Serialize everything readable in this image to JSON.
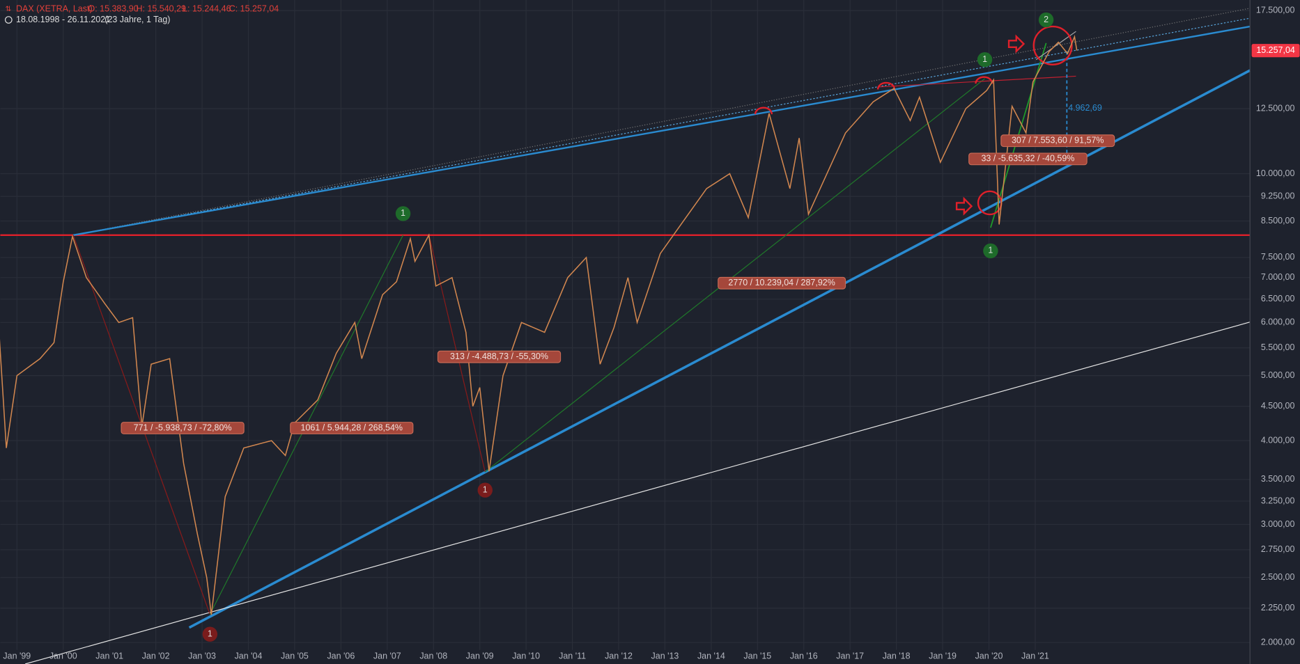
{
  "chart_data": {
    "type": "line",
    "header": {
      "symbol": "DAX (XETRA, Last)",
      "open": "O: 15.383,90",
      "high": "H: 15.540,29",
      "low": "L: 15.244,46",
      "close": "C: 15.257,04",
      "range": "18.08.1998 - 26.11.2021",
      "span": "(23 Jahre, 1 Tag)"
    },
    "x": [
      1998.62,
      1998.77,
      1999.0,
      1999.5,
      1999.8,
      2000.0,
      2000.2,
      2000.5,
      2000.9,
      2001.2,
      2001.5,
      2001.7,
      2001.9,
      2002.3,
      2002.6,
      2002.9,
      2003.1,
      2003.2,
      2003.5,
      2003.9,
      2004.5,
      2004.8,
      2005.0,
      2005.5,
      2005.9,
      2006.3,
      2006.45,
      2006.9,
      2007.2,
      2007.5,
      2007.6,
      2007.9,
      2008.05,
      2008.4,
      2008.7,
      2008.85,
      2009.0,
      2009.2,
      2009.5,
      2009.9,
      2010.4,
      2010.9,
      2011.3,
      2011.6,
      2011.9,
      2012.2,
      2012.4,
      2012.9,
      2013.4,
      2013.9,
      2014.4,
      2014.8,
      2015.25,
      2015.7,
      2015.9,
      2016.1,
      2016.5,
      2016.9,
      2017.5,
      2017.95,
      2018.3,
      2018.5,
      2018.95,
      2019.5,
      2019.95,
      2020.1,
      2020.22,
      2020.5,
      2020.8,
      2020.95,
      2021.3,
      2021.5,
      2021.7,
      2021.85,
      2021.9
    ],
    "series": [
      {
        "color": "#d2874f",
        "values": [
          5700,
          3900,
          5000,
          5300,
          5600,
          6900,
          8060,
          7000,
          6400,
          6000,
          6100,
          4200,
          5200,
          5300,
          3700,
          2900,
          2500,
          2200,
          3300,
          3900,
          4000,
          3800,
          4250,
          4600,
          5400,
          6000,
          5300,
          6600,
          6900,
          8000,
          7400,
          8100,
          6800,
          7000,
          5800,
          4500,
          4800,
          3600,
          5000,
          6000,
          5800,
          7000,
          7500,
          5200,
          5900,
          7000,
          6000,
          7600,
          8500,
          9500,
          10000,
          8600,
          12300,
          9500,
          11300,
          8700,
          10000,
          11500,
          12800,
          13400,
          12000,
          13000,
          10400,
          12500,
          13300,
          13800,
          8400,
          12600,
          11500,
          13700,
          15200,
          15700,
          15100,
          16000,
          15257
        ]
      }
    ],
    "last_value": {
      "value": 15257.04,
      "label": "15.257,04"
    },
    "xlim": [
      1998.64,
      2025.64
    ],
    "xticks": [
      {
        "value": 1999,
        "label": "Jan '99"
      },
      {
        "value": 2000,
        "label": "Jan '00"
      },
      {
        "value": 2001,
        "label": "Jan '01"
      },
      {
        "value": 2002,
        "label": "Jan '02"
      },
      {
        "value": 2003,
        "label": "Jan '03"
      },
      {
        "value": 2004,
        "label": "Jan '04"
      },
      {
        "value": 2005,
        "label": "Jan '05"
      },
      {
        "value": 2006,
        "label": "Jan '06"
      },
      {
        "value": 2007,
        "label": "Jan '07"
      },
      {
        "value": 2008,
        "label": "Jan '08"
      },
      {
        "value": 2009,
        "label": "Jan '09"
      },
      {
        "value": 2010,
        "label": "Jan '10"
      },
      {
        "value": 2011,
        "label": "Jan '11"
      },
      {
        "value": 2012,
        "label": "Jan '12"
      },
      {
        "value": 2013,
        "label": "Jan '13"
      },
      {
        "value": 2014,
        "label": "Jan '14"
      },
      {
        "value": 2015,
        "label": "Jan '15"
      },
      {
        "value": 2016,
        "label": "Jan '16"
      },
      {
        "value": 2017,
        "label": "Jan '17"
      },
      {
        "value": 2018,
        "label": "Jan '18"
      },
      {
        "value": 2019,
        "label": "Jan '19"
      },
      {
        "value": 2020,
        "label": "Jan '20"
      },
      {
        "value": 2021,
        "label": "Jan '21"
      }
    ],
    "ylim": [
      1950,
      18150
    ],
    "log_scale": true,
    "grid": true,
    "yticks": [
      {
        "value": 2000,
        "label": "2.000,00"
      },
      {
        "value": 2250,
        "label": "2.250,00"
      },
      {
        "value": 2500,
        "label": "2.500,00"
      },
      {
        "value": 2750,
        "label": "2.750,00"
      },
      {
        "value": 3000,
        "label": "3.000,00"
      },
      {
        "value": 3250,
        "label": "3.250,00"
      },
      {
        "value": 3500,
        "label": "3.500,00"
      },
      {
        "value": 4000,
        "label": "4.000,00"
      },
      {
        "value": 4500,
        "label": "4.500,00"
      },
      {
        "value": 5000,
        "label": "5.000,00"
      },
      {
        "value": 5500,
        "label": "5.500,00"
      },
      {
        "value": 6000,
        "label": "6.000,00"
      },
      {
        "value": 6500,
        "label": "6.500,00"
      },
      {
        "value": 7000,
        "label": "7.000,00"
      },
      {
        "value": 7500,
        "label": "7.500,00"
      },
      {
        "value": 8500,
        "label": "8.500,00"
      },
      {
        "value": 9250,
        "label": "9.250,00"
      },
      {
        "value": 10000,
        "label": "10.000,00"
      },
      {
        "value": 12500,
        "label": "12.500,00"
      },
      {
        "value": 17500,
        "label": "17.500,00"
      }
    ],
    "annotations": [
      "771 / -5.938,73 / -72,80%",
      "1061 / 5.944,28 / 268,54%",
      "313 / -4.488,73 / -55,30%",
      "2770 / 10.239,04 / 287,92%",
      "307 / 7.553,60 / 91,57%",
      "33 / -5.635,32 / -40,59%",
      "4.962,69"
    ],
    "markers": [
      "1",
      "1",
      "1",
      "1",
      "1",
      "2"
    ]
  }
}
